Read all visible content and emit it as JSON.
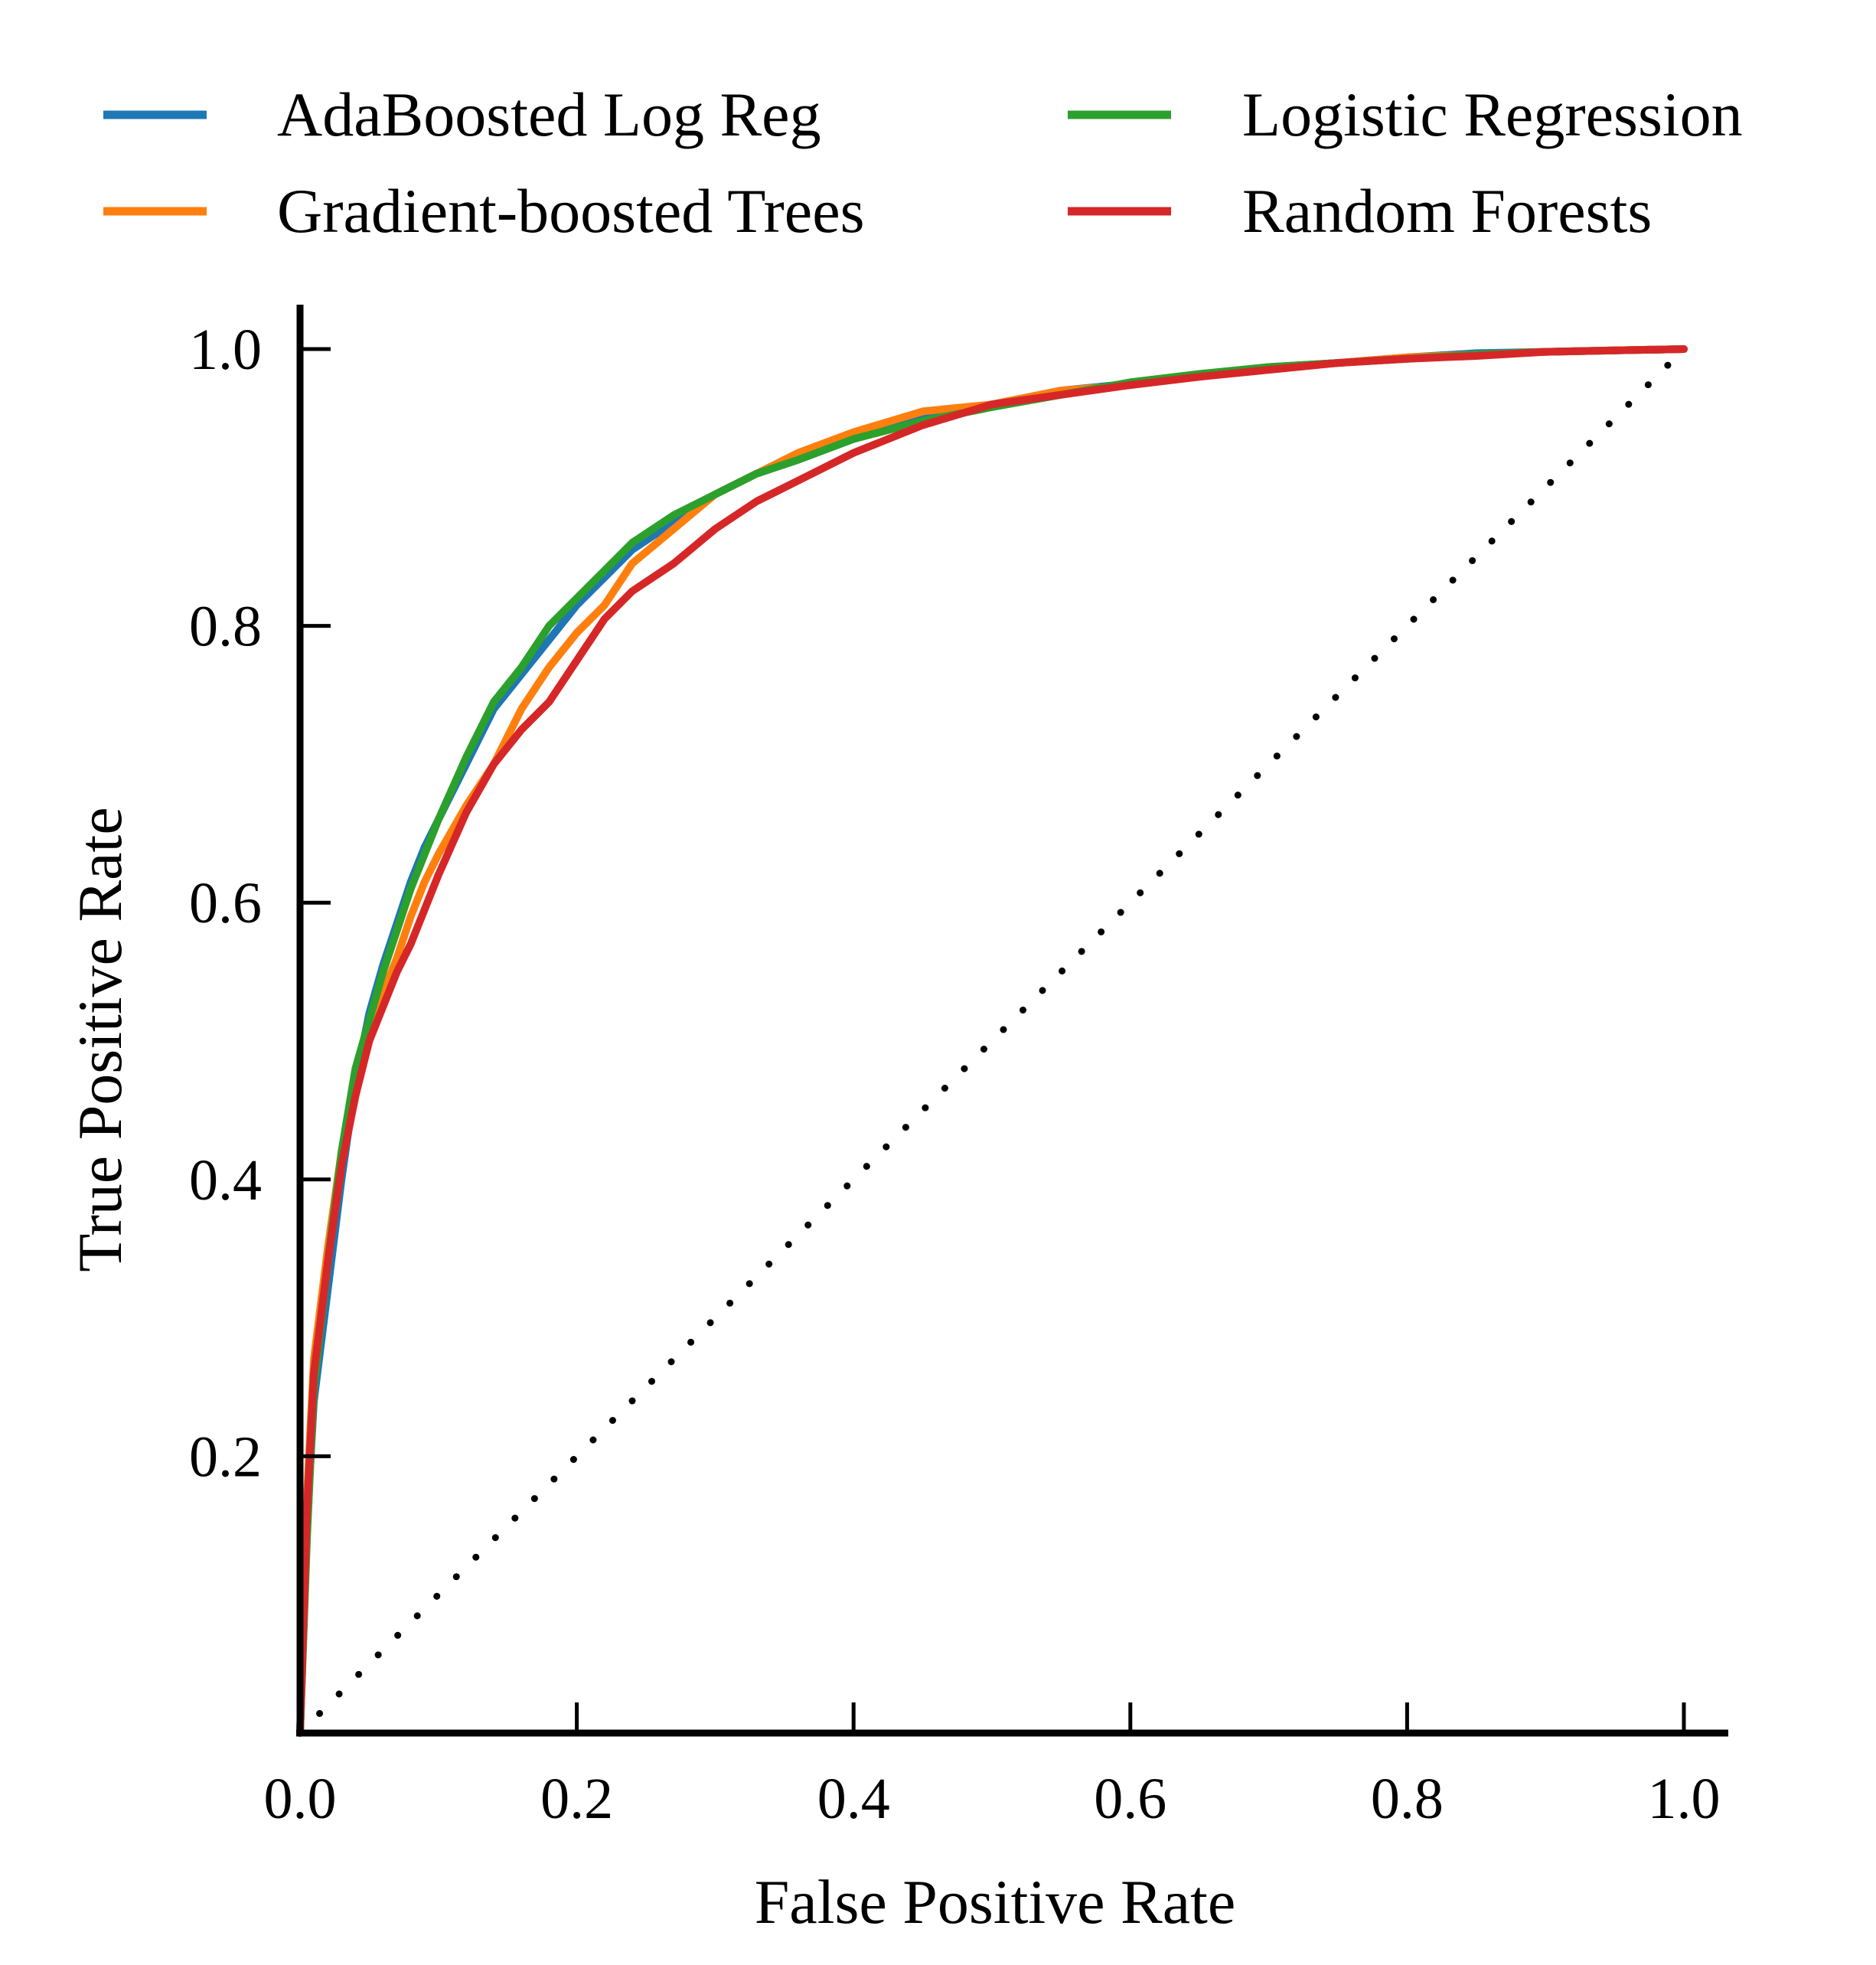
{
  "chart_data": {
    "type": "line",
    "title": "",
    "xlabel": "False Positive Rate",
    "ylabel": "True Positive Rate",
    "xlim": [
      0.0,
      1.0
    ],
    "ylim": [
      0.0,
      1.0
    ],
    "grid": false,
    "legend_position": "top",
    "x_ticks": [
      0.0,
      0.2,
      0.4,
      0.6,
      0.8,
      1.0
    ],
    "x_tick_labels": [
      "0.0",
      "0.2",
      "0.4",
      "0.6",
      "0.8",
      "1.0"
    ],
    "y_ticks": [
      0.2,
      0.4,
      0.6,
      0.8,
      1.0
    ],
    "y_tick_labels": [
      "0.2",
      "0.4",
      "0.6",
      "0.8",
      "1.0"
    ],
    "reference_line": {
      "name": "chance",
      "style": "dotted",
      "color": "#000000",
      "x": [
        0.0,
        1.0
      ],
      "y": [
        0.0,
        1.0
      ]
    },
    "series": [
      {
        "name": "AdaBoosted Log Reg",
        "color": "#1f77b4",
        "x": [
          0.0,
          0.005,
          0.01,
          0.02,
          0.03,
          0.04,
          0.05,
          0.06,
          0.07,
          0.08,
          0.09,
          0.1,
          0.12,
          0.14,
          0.16,
          0.18,
          0.2,
          0.22,
          0.24,
          0.27,
          0.3,
          0.33,
          0.36,
          0.4,
          0.45,
          0.5,
          0.55,
          0.6,
          0.65,
          0.7,
          0.75,
          0.8,
          0.85,
          0.9,
          0.95,
          1.0
        ],
        "y": [
          0.0,
          0.15,
          0.24,
          0.32,
          0.4,
          0.47,
          0.52,
          0.555,
          0.585,
          0.615,
          0.64,
          0.66,
          0.7,
          0.74,
          0.765,
          0.79,
          0.815,
          0.835,
          0.855,
          0.875,
          0.895,
          0.91,
          0.92,
          0.935,
          0.95,
          0.96,
          0.97,
          0.975,
          0.98,
          0.987,
          0.99,
          0.994,
          0.997,
          0.998,
          0.999,
          1.0
        ]
      },
      {
        "name": "Gradient-boosted Trees",
        "color": "#ff7f0e",
        "x": [
          0.0,
          0.005,
          0.01,
          0.02,
          0.03,
          0.04,
          0.05,
          0.06,
          0.07,
          0.08,
          0.09,
          0.1,
          0.12,
          0.14,
          0.16,
          0.18,
          0.2,
          0.22,
          0.24,
          0.27,
          0.3,
          0.33,
          0.36,
          0.4,
          0.45,
          0.5,
          0.55,
          0.6,
          0.65,
          0.7,
          0.75,
          0.8,
          0.85,
          0.9,
          0.95,
          1.0
        ],
        "y": [
          0.0,
          0.17,
          0.27,
          0.35,
          0.42,
          0.47,
          0.5,
          0.535,
          0.56,
          0.59,
          0.615,
          0.635,
          0.67,
          0.7,
          0.74,
          0.77,
          0.795,
          0.815,
          0.845,
          0.87,
          0.895,
          0.91,
          0.925,
          0.94,
          0.955,
          0.96,
          0.97,
          0.974,
          0.98,
          0.986,
          0.99,
          0.994,
          0.996,
          0.998,
          0.999,
          1.0
        ]
      },
      {
        "name": "Logistic Regression",
        "color": "#2ca02c",
        "x": [
          0.0,
          0.005,
          0.01,
          0.02,
          0.03,
          0.04,
          0.05,
          0.06,
          0.07,
          0.08,
          0.09,
          0.1,
          0.12,
          0.14,
          0.16,
          0.18,
          0.2,
          0.22,
          0.24,
          0.27,
          0.3,
          0.33,
          0.36,
          0.4,
          0.45,
          0.5,
          0.55,
          0.6,
          0.65,
          0.7,
          0.75,
          0.8,
          0.85,
          0.9,
          0.95,
          1.0
        ],
        "y": [
          0.0,
          0.14,
          0.25,
          0.34,
          0.42,
          0.48,
          0.515,
          0.55,
          0.58,
          0.61,
          0.635,
          0.66,
          0.705,
          0.745,
          0.77,
          0.8,
          0.82,
          0.84,
          0.86,
          0.88,
          0.895,
          0.91,
          0.92,
          0.935,
          0.948,
          0.958,
          0.967,
          0.976,
          0.982,
          0.987,
          0.99,
          0.993,
          0.996,
          0.998,
          0.999,
          1.0
        ]
      },
      {
        "name": "Random Forests",
        "color": "#d62728",
        "x": [
          0.0,
          0.005,
          0.01,
          0.02,
          0.03,
          0.04,
          0.05,
          0.06,
          0.07,
          0.08,
          0.09,
          0.1,
          0.12,
          0.14,
          0.16,
          0.18,
          0.2,
          0.22,
          0.24,
          0.27,
          0.3,
          0.33,
          0.36,
          0.4,
          0.45,
          0.5,
          0.55,
          0.6,
          0.65,
          0.7,
          0.75,
          0.8,
          0.85,
          0.9,
          0.95,
          1.0
        ],
        "y": [
          0.0,
          0.16,
          0.26,
          0.34,
          0.41,
          0.46,
          0.5,
          0.525,
          0.55,
          0.57,
          0.595,
          0.62,
          0.665,
          0.7,
          0.725,
          0.745,
          0.775,
          0.805,
          0.825,
          0.845,
          0.87,
          0.89,
          0.905,
          0.925,
          0.945,
          0.96,
          0.967,
          0.974,
          0.98,
          0.985,
          0.99,
          0.993,
          0.995,
          0.998,
          0.999,
          1.0
        ]
      }
    ]
  }
}
